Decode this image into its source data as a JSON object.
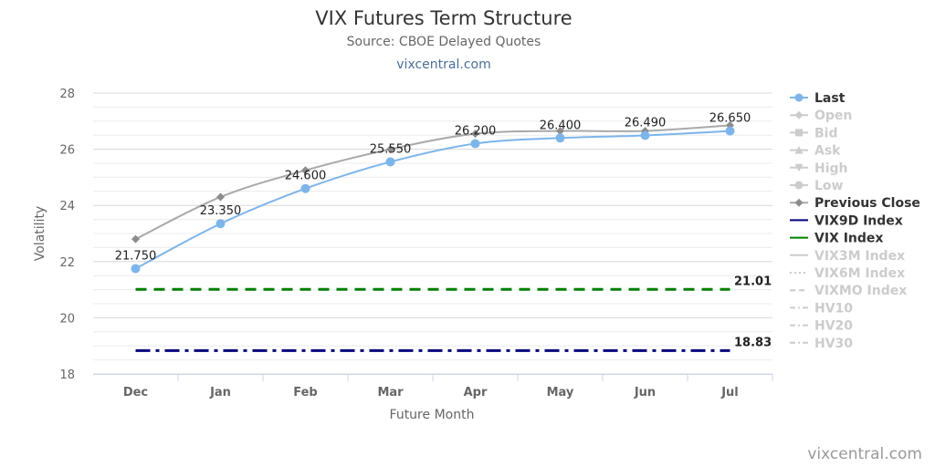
{
  "header": {
    "title": "VIX Futures Term Structure",
    "subtitle": "Source: CBOE Delayed Quotes",
    "site": "vixcentral.com"
  },
  "credit": "vixcentral.com",
  "colors": {
    "last": "#7cb5ec",
    "previous_close": "#a9a9a9",
    "vix9d": "#000080",
    "vix": "#008000",
    "hidden": "#cccccc",
    "grid": "#e6e6e6"
  },
  "chart_data": {
    "type": "line",
    "xlabel": "Future Month",
    "ylabel": "Volatility",
    "ylim": [
      18,
      28
    ],
    "yticks": [
      18,
      20,
      22,
      24,
      26,
      28
    ],
    "minor_gridlines": true,
    "legend_position": "right",
    "categories": [
      "Dec",
      "Jan",
      "Feb",
      "Mar",
      "Apr",
      "May",
      "Jun",
      "Jul"
    ],
    "series": [
      {
        "name": "Last",
        "values": [
          21.75,
          23.35,
          24.6,
          25.55,
          26.2,
          26.4,
          26.49,
          26.65
        ],
        "labels": [
          "21.750",
          "23.350",
          "24.600",
          "25.550",
          "26.200",
          "26.400",
          "26.490",
          "26.650"
        ]
      },
      {
        "name": "Previous Close",
        "values": [
          22.8,
          24.3,
          25.25,
          26.0,
          26.55,
          26.65,
          26.65,
          26.85
        ]
      }
    ],
    "reference_lines": [
      {
        "name": "VIX Index",
        "value": 21.01,
        "label": "21.01",
        "style": "dashed"
      },
      {
        "name": "VIX9D Index",
        "value": 18.83,
        "label": "18.83",
        "style": "dash-dot"
      }
    ]
  },
  "legend": [
    {
      "label": "Last",
      "active": true,
      "symbol": "circle",
      "line": "solid",
      "color": "#7cb5ec"
    },
    {
      "label": "Open",
      "active": false,
      "symbol": "diamond",
      "line": "solid"
    },
    {
      "label": "Bid",
      "active": false,
      "symbol": "square",
      "line": "solid"
    },
    {
      "label": "Ask",
      "active": false,
      "symbol": "triangle",
      "line": "solid"
    },
    {
      "label": "High",
      "active": false,
      "symbol": "triangle-down",
      "line": "solid"
    },
    {
      "label": "Low",
      "active": false,
      "symbol": "circle",
      "line": "solid"
    },
    {
      "label": "Previous Close",
      "active": true,
      "symbol": "diamond",
      "line": "solid",
      "color": "#a9a9a9"
    },
    {
      "label": "VIX9D Index",
      "active": true,
      "symbol": "none",
      "line": "solid",
      "color": "#000080"
    },
    {
      "label": "VIX Index",
      "active": true,
      "symbol": "none",
      "line": "solid",
      "color": "#008000"
    },
    {
      "label": "VIX3M Index",
      "active": false,
      "symbol": "none",
      "line": "solid"
    },
    {
      "label": "VIX6M Index",
      "active": false,
      "symbol": "none",
      "line": "dotted"
    },
    {
      "label": "VIXMO Index",
      "active": false,
      "symbol": "none",
      "line": "dashed"
    },
    {
      "label": "HV10",
      "active": false,
      "symbol": "none",
      "line": "dash-dot"
    },
    {
      "label": "HV20",
      "active": false,
      "symbol": "none",
      "line": "dash-dot"
    },
    {
      "label": "HV30",
      "active": false,
      "symbol": "none",
      "line": "dash-dot"
    }
  ]
}
